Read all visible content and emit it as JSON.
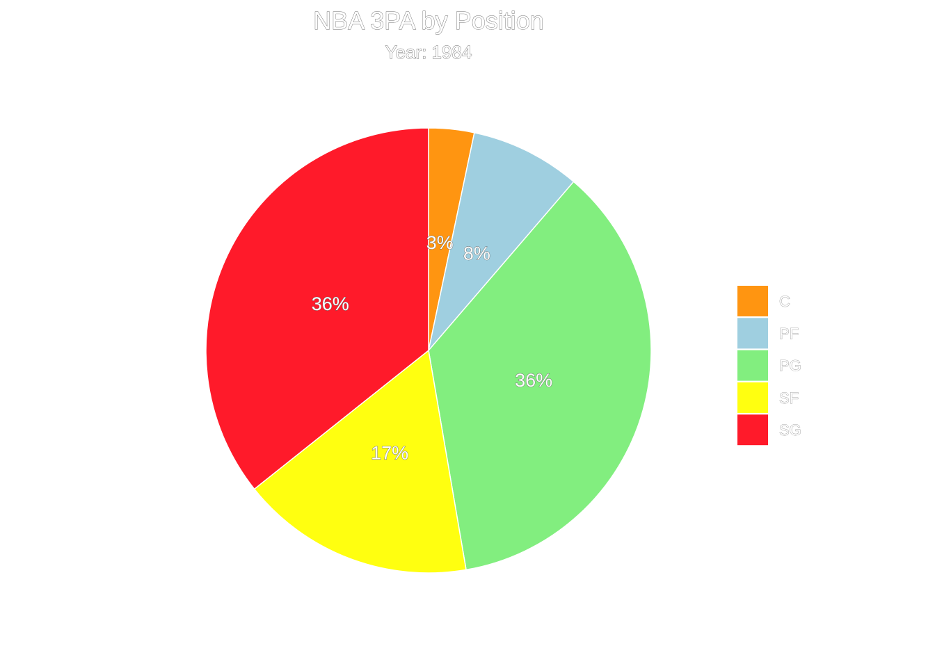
{
  "chart_data": {
    "type": "pie",
    "title": "NBA 3PA by Position",
    "subtitle": "Year: 1984",
    "categories": [
      "C",
      "PF",
      "PG",
      "SF",
      "SG"
    ],
    "values": [
      3.3,
      8.0,
      36.0,
      17.0,
      35.7
    ],
    "labels": [
      "3%",
      "8%",
      "36%",
      "17%",
      "36%"
    ],
    "colors": [
      "#FF9511",
      "#9FCFE0",
      "#82EE7F",
      "#FFFF10",
      "#FF1A2A"
    ],
    "slice_border_color": "#ffffff",
    "legend_position": "right",
    "start_angle": "12 o'clock",
    "direction": "clockwise"
  }
}
